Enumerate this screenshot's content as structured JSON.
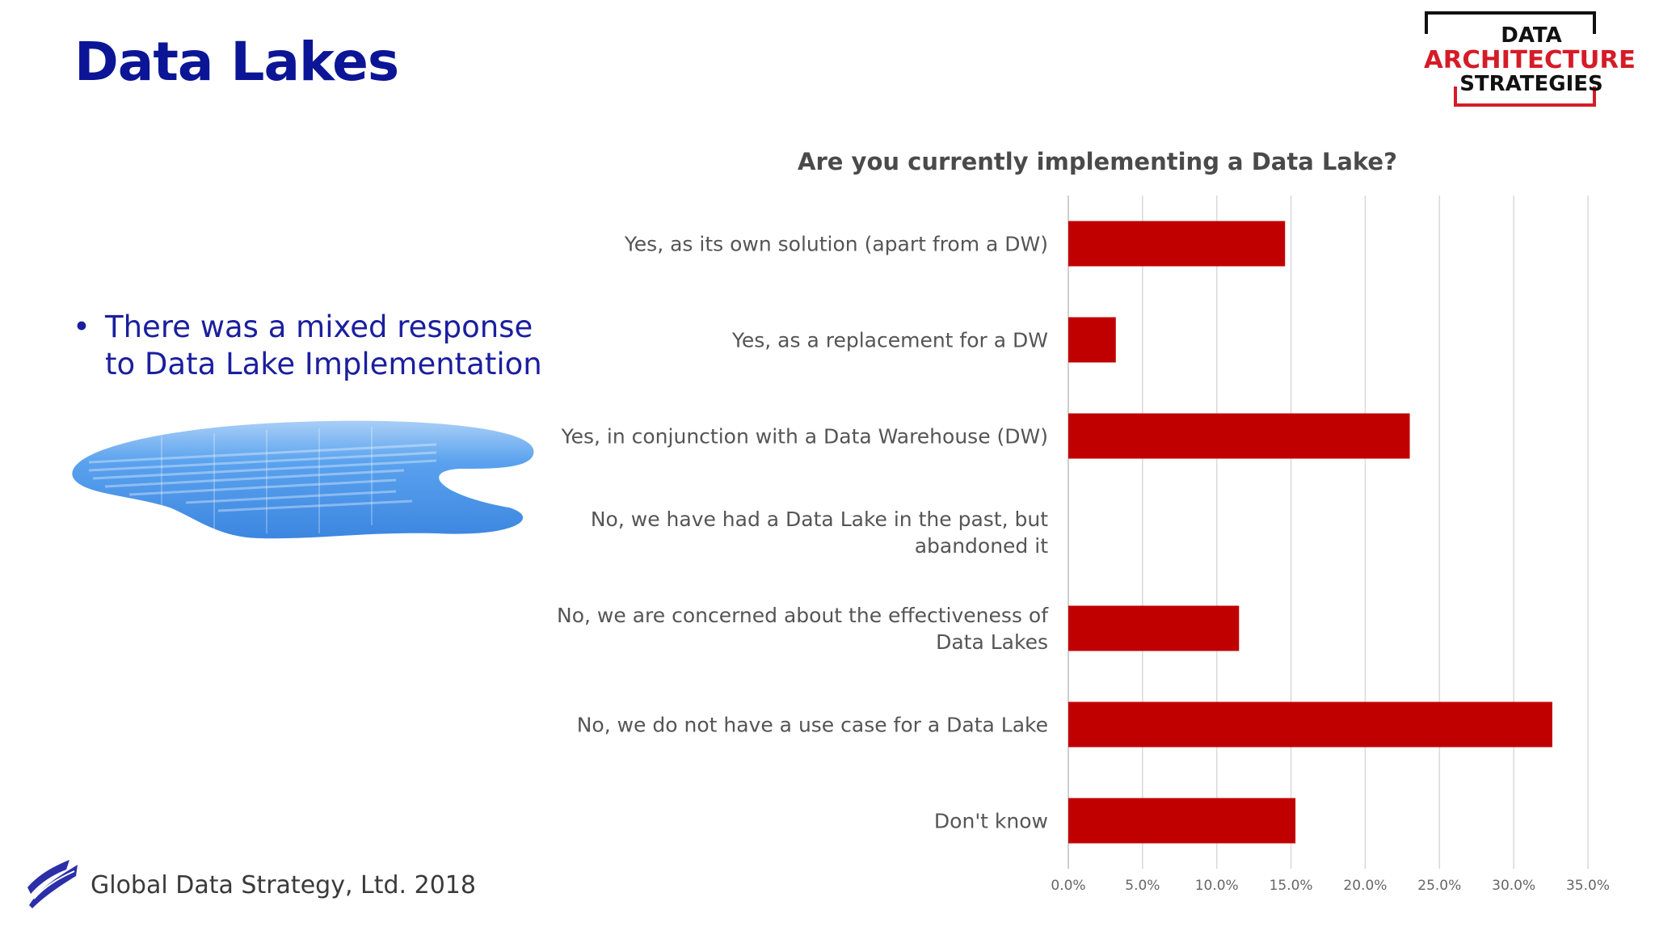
{
  "slide": {
    "title": "Data Lakes",
    "bullet": "There was a mixed response to Data Lake Implementation",
    "footer": "Global Data Strategy, Ltd. 2018"
  },
  "badge": {
    "line1": "DATA",
    "line2": "ARCHITECTURE",
    "line3": "STRATEGIES",
    "accent_color": "#d41c28",
    "text_color": "#111111"
  },
  "colors": {
    "title": "#0b1596",
    "bar": "#c00000",
    "grid": "#d9d9d9",
    "lake": "#3f8fe8"
  },
  "chart_data": {
    "type": "bar",
    "orientation": "horizontal",
    "title": "Are you currently implementing a Data Lake?",
    "categories": [
      "Yes, as its own solution (apart from a DW)",
      "Yes, as a replacement for a DW",
      "Yes, in conjunction with a Data Warehouse (DW)",
      "No, we have had a Data Lake in the past, but abandoned it",
      "No, we are concerned about the effectiveness of Data Lakes",
      "No, we do not have a use case for a Data Lake",
      "Don't know"
    ],
    "category_lines": [
      [
        "Yes, as its own solution (apart from a DW)"
      ],
      [
        "Yes, as a replacement for a DW"
      ],
      [
        "Yes, in conjunction with a Data Warehouse (DW)"
      ],
      [
        "No, we have had a Data Lake in the past, but",
        "abandoned it"
      ],
      [
        "No, we are concerned about the effectiveness of",
        "Data Lakes"
      ],
      [
        "No, we do not have a use case for a Data Lake"
      ],
      [
        "Don't know"
      ]
    ],
    "values": [
      14.6,
      3.2,
      23.0,
      0.0,
      11.5,
      32.6,
      15.3
    ],
    "xlim": [
      0,
      35
    ],
    "xticks": [
      "0.0%",
      "5.0%",
      "10.0%",
      "15.0%",
      "20.0%",
      "25.0%",
      "30.0%",
      "35.0%"
    ],
    "grid": true
  }
}
